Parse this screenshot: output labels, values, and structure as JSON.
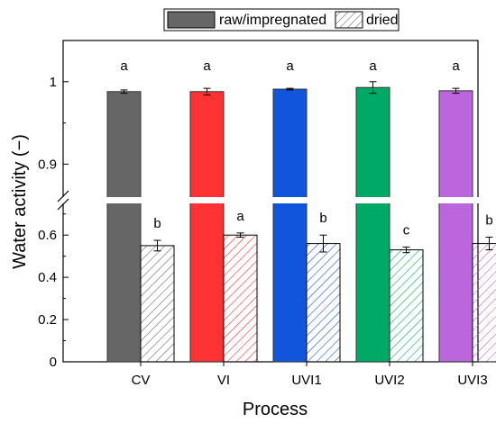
{
  "chart_data": {
    "type": "bar",
    "xlabel": "Process",
    "ylabel": "Water activity (−)",
    "categories": [
      "CV",
      "VI",
      "UVI1",
      "UVI2",
      "UVI3"
    ],
    "category_colors": [
      "#666666",
      "#ff3333",
      "#1155dd",
      "#00aa66",
      "#bb66dd"
    ],
    "series": [
      {
        "name": "raw/impregnated",
        "style": "solid",
        "values": [
          0.988,
          0.988,
          0.991,
          0.993,
          0.989
        ],
        "errors": [
          0.002,
          0.004,
          0.001,
          0.007,
          0.003
        ],
        "significance": [
          "a",
          "a",
          "a",
          "a",
          "a"
        ]
      },
      {
        "name": "dried",
        "style": "hatched",
        "values": [
          0.55,
          0.6,
          0.56,
          0.53,
          0.56
        ],
        "errors": [
          0.025,
          0.01,
          0.04,
          0.013,
          0.03
        ],
        "significance": [
          "b",
          "a",
          "b",
          "c",
          "b"
        ]
      }
    ],
    "y_axis_segments": [
      {
        "range": [
          0,
          0.75
        ],
        "ticks": [
          "0",
          "0.2",
          "0.4",
          "0.6"
        ],
        "tick_values": [
          0,
          0.2,
          0.4,
          0.6
        ]
      },
      {
        "range": [
          0.86,
          1.05
        ],
        "ticks": [
          "0.9",
          "1"
        ],
        "tick_values": [
          0.9,
          1.0
        ]
      }
    ],
    "axis_break": true,
    "legend_position": "top-center",
    "grid": false
  }
}
